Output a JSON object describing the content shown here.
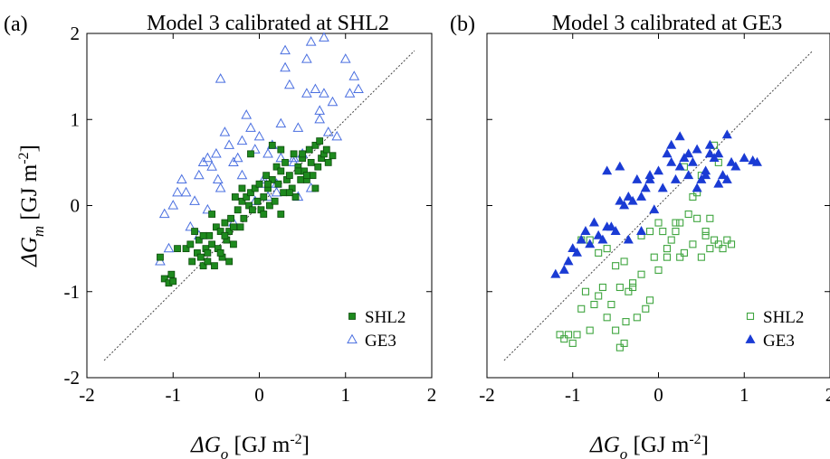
{
  "chart_data": [
    {
      "type": "scatter",
      "panel_label": "(a)",
      "title": "Model 3 calibrated at SHL2",
      "xlabel": {
        "symbol": "ΔG",
        "sub": "o",
        "unit": "[GJ m",
        "exp": "-2",
        "close": "]"
      },
      "ylabel": {
        "symbol": "ΔG",
        "sub": "m",
        "unit": "[GJ m",
        "exp": "-2",
        "close": "]"
      },
      "xlim": [
        -2,
        2
      ],
      "ylim": [
        -2,
        2
      ],
      "xticks": [
        "-2",
        "-1",
        "0",
        "1",
        "2"
      ],
      "yticks": [
        "-2",
        "-1",
        "0",
        "1",
        "2"
      ],
      "show_y_tick_labels": true,
      "one_to_one_line": true,
      "legend_position": "bottom-right",
      "series": [
        {
          "name": "SHL2",
          "marker": "square",
          "filled": true,
          "color": "#1e8a1e",
          "x": [
            -1.15,
            -1.1,
            -1.05,
            -1.02,
            -1.0,
            -0.95,
            -0.85,
            -0.8,
            -0.78,
            -0.72,
            -0.7,
            -0.68,
            -0.65,
            -0.62,
            -0.6,
            -0.58,
            -0.55,
            -0.52,
            -0.5,
            -0.48,
            -0.45,
            -0.43,
            -0.4,
            -0.38,
            -0.35,
            -0.33,
            -0.3,
            -0.28,
            -0.25,
            -0.22,
            -0.2,
            -0.18,
            -0.15,
            -0.12,
            -0.1,
            -0.08,
            -0.05,
            -0.02,
            0.0,
            0.02,
            0.05,
            0.08,
            0.1,
            0.12,
            0.15,
            0.18,
            0.2,
            0.22,
            0.25,
            0.28,
            0.3,
            0.32,
            0.35,
            0.38,
            0.4,
            0.42,
            0.45,
            0.48,
            0.5,
            0.52,
            0.55,
            0.58,
            0.6,
            0.62,
            0.65,
            0.68,
            0.7,
            0.72,
            0.75,
            0.78,
            0.8,
            0.85,
            -0.75,
            -0.6,
            -0.55,
            -0.45,
            -0.4,
            -0.3,
            -0.2,
            -0.1,
            0.05,
            0.15,
            0.25,
            0.35,
            0.45,
            0.55,
            0.65,
            0.25,
            0.5,
            -0.35,
            -0.65,
            0.1
          ],
          "y": [
            -0.6,
            -0.85,
            -0.9,
            -0.8,
            -0.88,
            -0.5,
            -0.5,
            -0.45,
            -0.65,
            -0.55,
            -0.4,
            -0.6,
            -0.7,
            -0.5,
            -0.65,
            -0.35,
            -0.45,
            -0.7,
            -0.25,
            -0.5,
            -0.3,
            -0.6,
            -0.2,
            -0.4,
            -0.3,
            -0.15,
            -0.25,
            0.1,
            -0.05,
            -0.25,
            0.05,
            -0.15,
            0.1,
            0.0,
            0.15,
            -0.05,
            0.2,
            0.05,
            0.25,
            -0.05,
            0.1,
            0.35,
            0.2,
            0.0,
            0.3,
            0.05,
            0.45,
            0.25,
            0.4,
            0.15,
            0.5,
            0.3,
            0.35,
            0.2,
            0.6,
            0.1,
            0.45,
            0.3,
            0.55,
            0.4,
            0.3,
            0.65,
            0.5,
            0.35,
            0.7,
            0.45,
            0.75,
            0.55,
            0.6,
            0.65,
            0.5,
            0.58,
            -0.3,
            -0.55,
            -0.1,
            -0.55,
            -0.35,
            -0.45,
            0.2,
            0.6,
            -0.1,
            0.7,
            0.65,
            0.15,
            0.4,
            0.35,
            0.2,
            -0.1,
            0.6,
            -0.65,
            -0.35,
            0.25
          ]
        },
        {
          "name": "GE3",
          "marker": "triangle",
          "filled": false,
          "color": "#4a6fe0",
          "x": [
            -1.15,
            -1.1,
            -1.05,
            -1.0,
            -0.95,
            -0.9,
            -0.85,
            -0.8,
            -0.75,
            -0.7,
            -0.65,
            -0.6,
            -0.55,
            -0.5,
            -0.48,
            -0.45,
            -0.4,
            -0.35,
            -0.3,
            -0.25,
            -0.2,
            -0.15,
            -0.1,
            -0.05,
            0.0,
            0.05,
            0.1,
            0.15,
            0.2,
            0.25,
            0.3,
            0.35,
            0.4,
            0.45,
            0.5,
            0.55,
            0.6,
            0.65,
            0.7,
            0.75,
            0.8,
            0.85,
            0.9,
            1.0,
            1.05,
            1.1,
            1.15,
            -0.45,
            -0.2,
            0.1,
            0.3,
            0.55,
            0.75,
            0.05,
            0.4,
            0.6,
            -0.6,
            0.2,
            -0.05,
            0.45,
            0.7,
            0.25,
            -0.3,
            -0.7
          ],
          "y": [
            -0.65,
            -0.1,
            -0.5,
            0.0,
            0.15,
            0.3,
            0.15,
            -0.25,
            0.05,
            0.35,
            0.5,
            0.55,
            0.45,
            0.6,
            0.3,
            1.47,
            0.85,
            0.7,
            0.5,
            0.55,
            0.75,
            1.05,
            0.9,
            0.65,
            0.8,
            0.3,
            0.6,
            0.7,
            0.25,
            0.95,
            1.8,
            1.4,
            0.55,
            0.9,
            0.6,
            1.3,
            1.9,
            1.35,
            1.1,
            1.95,
            0.85,
            1.2,
            0.8,
            1.7,
            1.3,
            1.5,
            1.35,
            0.2,
            0.35,
            0.1,
            1.6,
            1.7,
            1.3,
            0.25,
            0.5,
            0.2,
            -0.05,
            0.15,
            0.05,
            0.1,
            1.0,
            0.55,
            -0.2,
            -0.35
          ]
        }
      ]
    },
    {
      "type": "scatter",
      "panel_label": "(b)",
      "title": "Model 3 calibrated at GE3",
      "xlabel": {
        "symbol": "ΔG",
        "sub": "o",
        "unit": "[GJ m",
        "exp": "-2",
        "close": "]"
      },
      "ylabel": null,
      "xlim": [
        -2,
        2
      ],
      "ylim": [
        -2,
        2
      ],
      "xticks": [
        "-2",
        "-1",
        "0",
        "1",
        "2"
      ],
      "yticks": [
        "",
        "",
        "",
        "",
        ""
      ],
      "show_y_tick_labels": false,
      "one_to_one_line": true,
      "legend_position": "bottom-right",
      "series": [
        {
          "name": "SHL2",
          "marker": "square",
          "filled": false,
          "color": "#3fa53f",
          "x": [
            -1.15,
            -1.1,
            -1.05,
            -1.0,
            -0.95,
            -0.9,
            -0.85,
            -0.8,
            -0.75,
            -0.7,
            -0.65,
            -0.6,
            -0.55,
            -0.5,
            -0.45,
            -0.4,
            -0.38,
            -0.35,
            -0.3,
            -0.25,
            -0.2,
            -0.15,
            -0.1,
            -0.05,
            0.0,
            0.05,
            0.1,
            0.15,
            0.2,
            0.25,
            0.3,
            0.35,
            0.4,
            0.45,
            0.5,
            0.55,
            0.6,
            0.65,
            0.7,
            0.75,
            0.8,
            0.85,
            -0.8,
            -0.6,
            -0.4,
            -0.2,
            0.0,
            0.2,
            0.4,
            0.6,
            0.7,
            -0.5,
            -0.3,
            0.1,
            0.3,
            0.5,
            -0.7,
            -0.9,
            0.45,
            0.65,
            -0.1,
            0.25,
            0.55,
            -0.45
          ],
          "y": [
            -1.5,
            -1.55,
            -1.5,
            -1.6,
            -1.5,
            -1.2,
            -1.0,
            -1.45,
            -1.15,
            -1.05,
            -0.95,
            -1.3,
            -1.15,
            -1.45,
            -1.65,
            -1.6,
            -1.35,
            -1.0,
            -0.95,
            -1.3,
            -0.8,
            -1.2,
            -1.1,
            -0.6,
            -0.75,
            -0.3,
            -0.6,
            -0.4,
            -0.3,
            -0.2,
            -0.55,
            -0.1,
            -0.45,
            -0.15,
            -0.6,
            -0.3,
            -0.5,
            -0.4,
            -0.45,
            -0.5,
            -0.4,
            -0.45,
            -0.4,
            -0.5,
            -0.65,
            -0.35,
            -0.2,
            -0.2,
            0.1,
            -0.15,
            0.5,
            -0.7,
            -0.9,
            -0.5,
            0.45,
            0.35,
            -0.55,
            -0.4,
            0.15,
            0.7,
            -0.3,
            -0.6,
            -0.35,
            -0.95
          ]
        },
        {
          "name": "GE3",
          "marker": "triangle",
          "filled": true,
          "color": "#1a3bd4",
          "x": [
            -1.2,
            -1.1,
            -1.05,
            -1.0,
            -0.95,
            -0.9,
            -0.85,
            -0.8,
            -0.75,
            -0.7,
            -0.65,
            -0.6,
            -0.55,
            -0.5,
            -0.45,
            -0.4,
            -0.35,
            -0.3,
            -0.25,
            -0.2,
            -0.15,
            -0.1,
            -0.05,
            0.0,
            0.05,
            0.1,
            0.15,
            0.2,
            0.25,
            0.3,
            0.35,
            0.4,
            0.45,
            0.5,
            0.55,
            0.6,
            0.65,
            0.7,
            0.75,
            0.8,
            0.85,
            0.9,
            1.0,
            1.1,
            1.15,
            -0.6,
            -0.35,
            -0.1,
            0.15,
            0.35,
            0.55,
            0.7,
            -0.45,
            0.25,
            -0.2,
            0.45,
            0.6,
            0.8
          ],
          "y": [
            -0.8,
            -0.75,
            -0.65,
            -0.5,
            -0.55,
            -0.4,
            -0.3,
            -0.45,
            -0.2,
            -0.35,
            -0.4,
            0.4,
            -0.25,
            -0.3,
            0.45,
            0.0,
            -0.4,
            0.05,
            0.3,
            -0.3,
            0.2,
            0.3,
            -0.05,
            0.4,
            0.2,
            0.6,
            0.5,
            0.3,
            0.45,
            0.55,
            0.35,
            0.5,
            0.2,
            0.3,
            0.4,
            0.7,
            0.55,
            0.6,
            0.35,
            0.82,
            0.5,
            0.45,
            0.55,
            0.52,
            0.5,
            -0.25,
            0.1,
            0.35,
            0.7,
            0.6,
            0.35,
            0.25,
            0.05,
            0.8,
            0.1,
            0.65,
            0.6,
            0.3
          ]
        }
      ]
    }
  ]
}
